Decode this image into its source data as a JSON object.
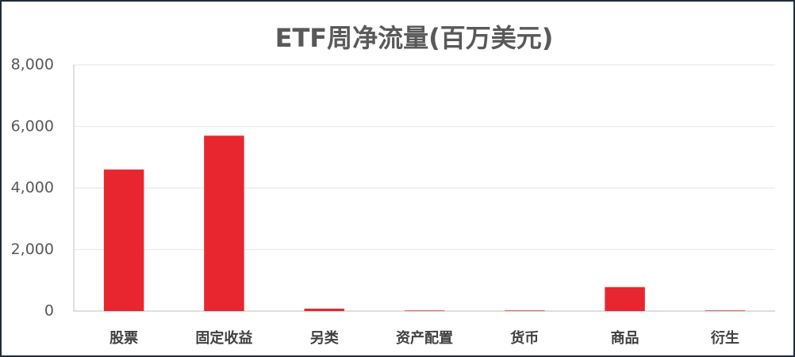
{
  "chart_data": {
    "type": "bar",
    "title": "ETF周净流量(百万美元)",
    "categories": [
      "股票",
      "固定收益",
      "另类",
      "资产配置",
      "货币",
      "商品",
      "衍生"
    ],
    "values": [
      4600,
      5700,
      80,
      20,
      20,
      780,
      20
    ],
    "color": "#e8262f",
    "ylim": [
      0,
      8000
    ],
    "yticks": [
      0,
      {
        "value": 2000,
        "label": "2,000"
      },
      {
        "value": 4000,
        "label": "4,000"
      },
      {
        "value": 6000,
        "label": "6,000"
      },
      {
        "value": 8000,
        "label": "8,000"
      }
    ],
    "grid": true
  }
}
